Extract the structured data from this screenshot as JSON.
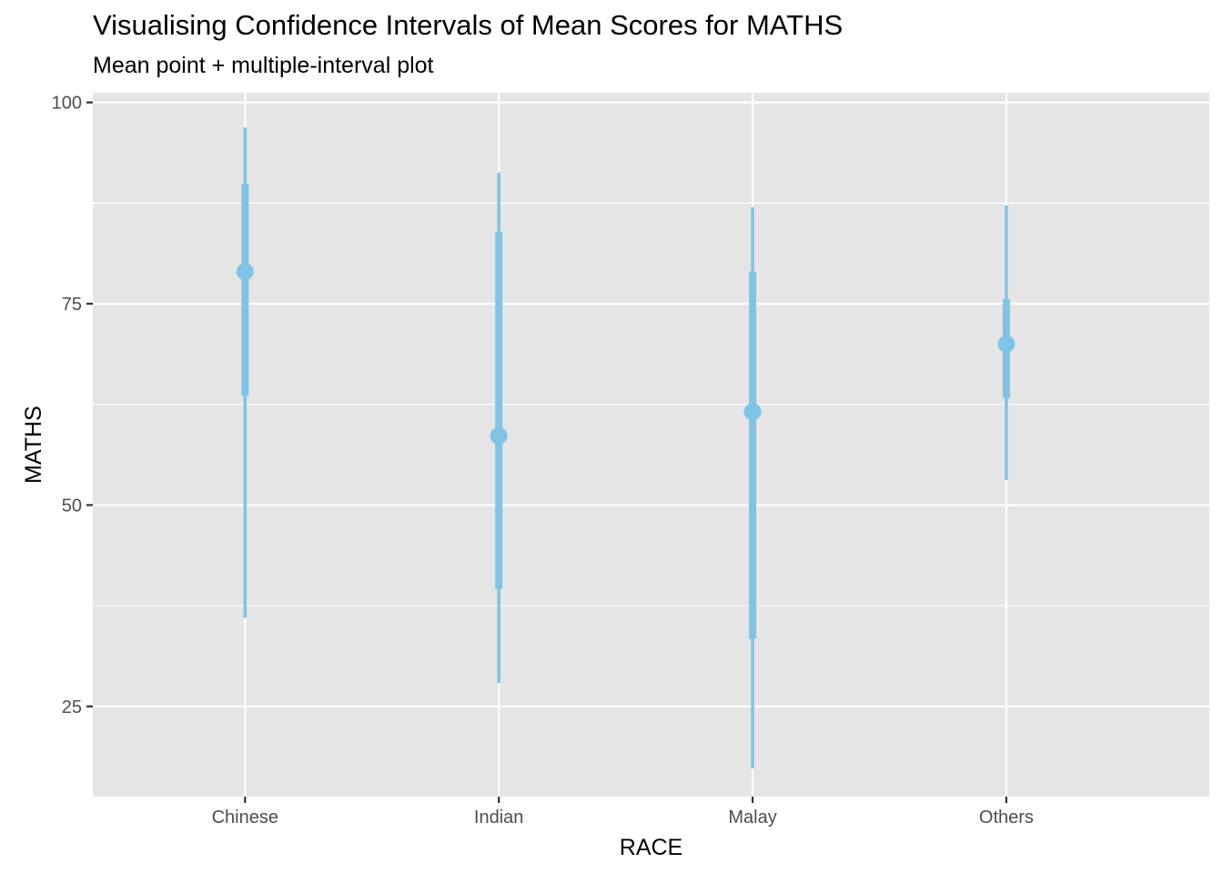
{
  "title": "Visualising Confidence Intervals of Mean Scores for MATHS",
  "subtitle": "Mean point + multiple-interval plot",
  "chart_data": {
    "type": "interval",
    "title": "Visualising Confidence Intervals of Mean Scores for MATHS",
    "subtitle": "Mean point + multiple-interval plot",
    "xlabel": "RACE",
    "ylabel": "MATHS",
    "categories": [
      "Chinese",
      "Indian",
      "Malay",
      "Others"
    ],
    "ylim": [
      13.8,
      101.2
    ],
    "yticks": [
      25,
      50,
      75,
      100
    ],
    "ytick_labels": [
      "25",
      "50",
      "75",
      "100"
    ],
    "grid": true,
    "color": "#7fc4e6",
    "panel_color": "#e5e5e5",
    "points": [
      {
        "race": "Chinese",
        "mean": 79.0,
        "inner": [
          63.6,
          89.9
        ],
        "outer": [
          36.0,
          96.9
        ]
      },
      {
        "race": "Indian",
        "mean": 58.6,
        "inner": [
          39.6,
          83.9
        ],
        "outer": [
          27.9,
          91.3
        ]
      },
      {
        "race": "Malay",
        "mean": 61.6,
        "inner": [
          33.4,
          79.0
        ],
        "outer": [
          17.3,
          87.0
        ]
      },
      {
        "race": "Others",
        "mean": 70.0,
        "inner": [
          63.3,
          75.6
        ],
        "outer": [
          53.1,
          87.2
        ]
      }
    ]
  }
}
